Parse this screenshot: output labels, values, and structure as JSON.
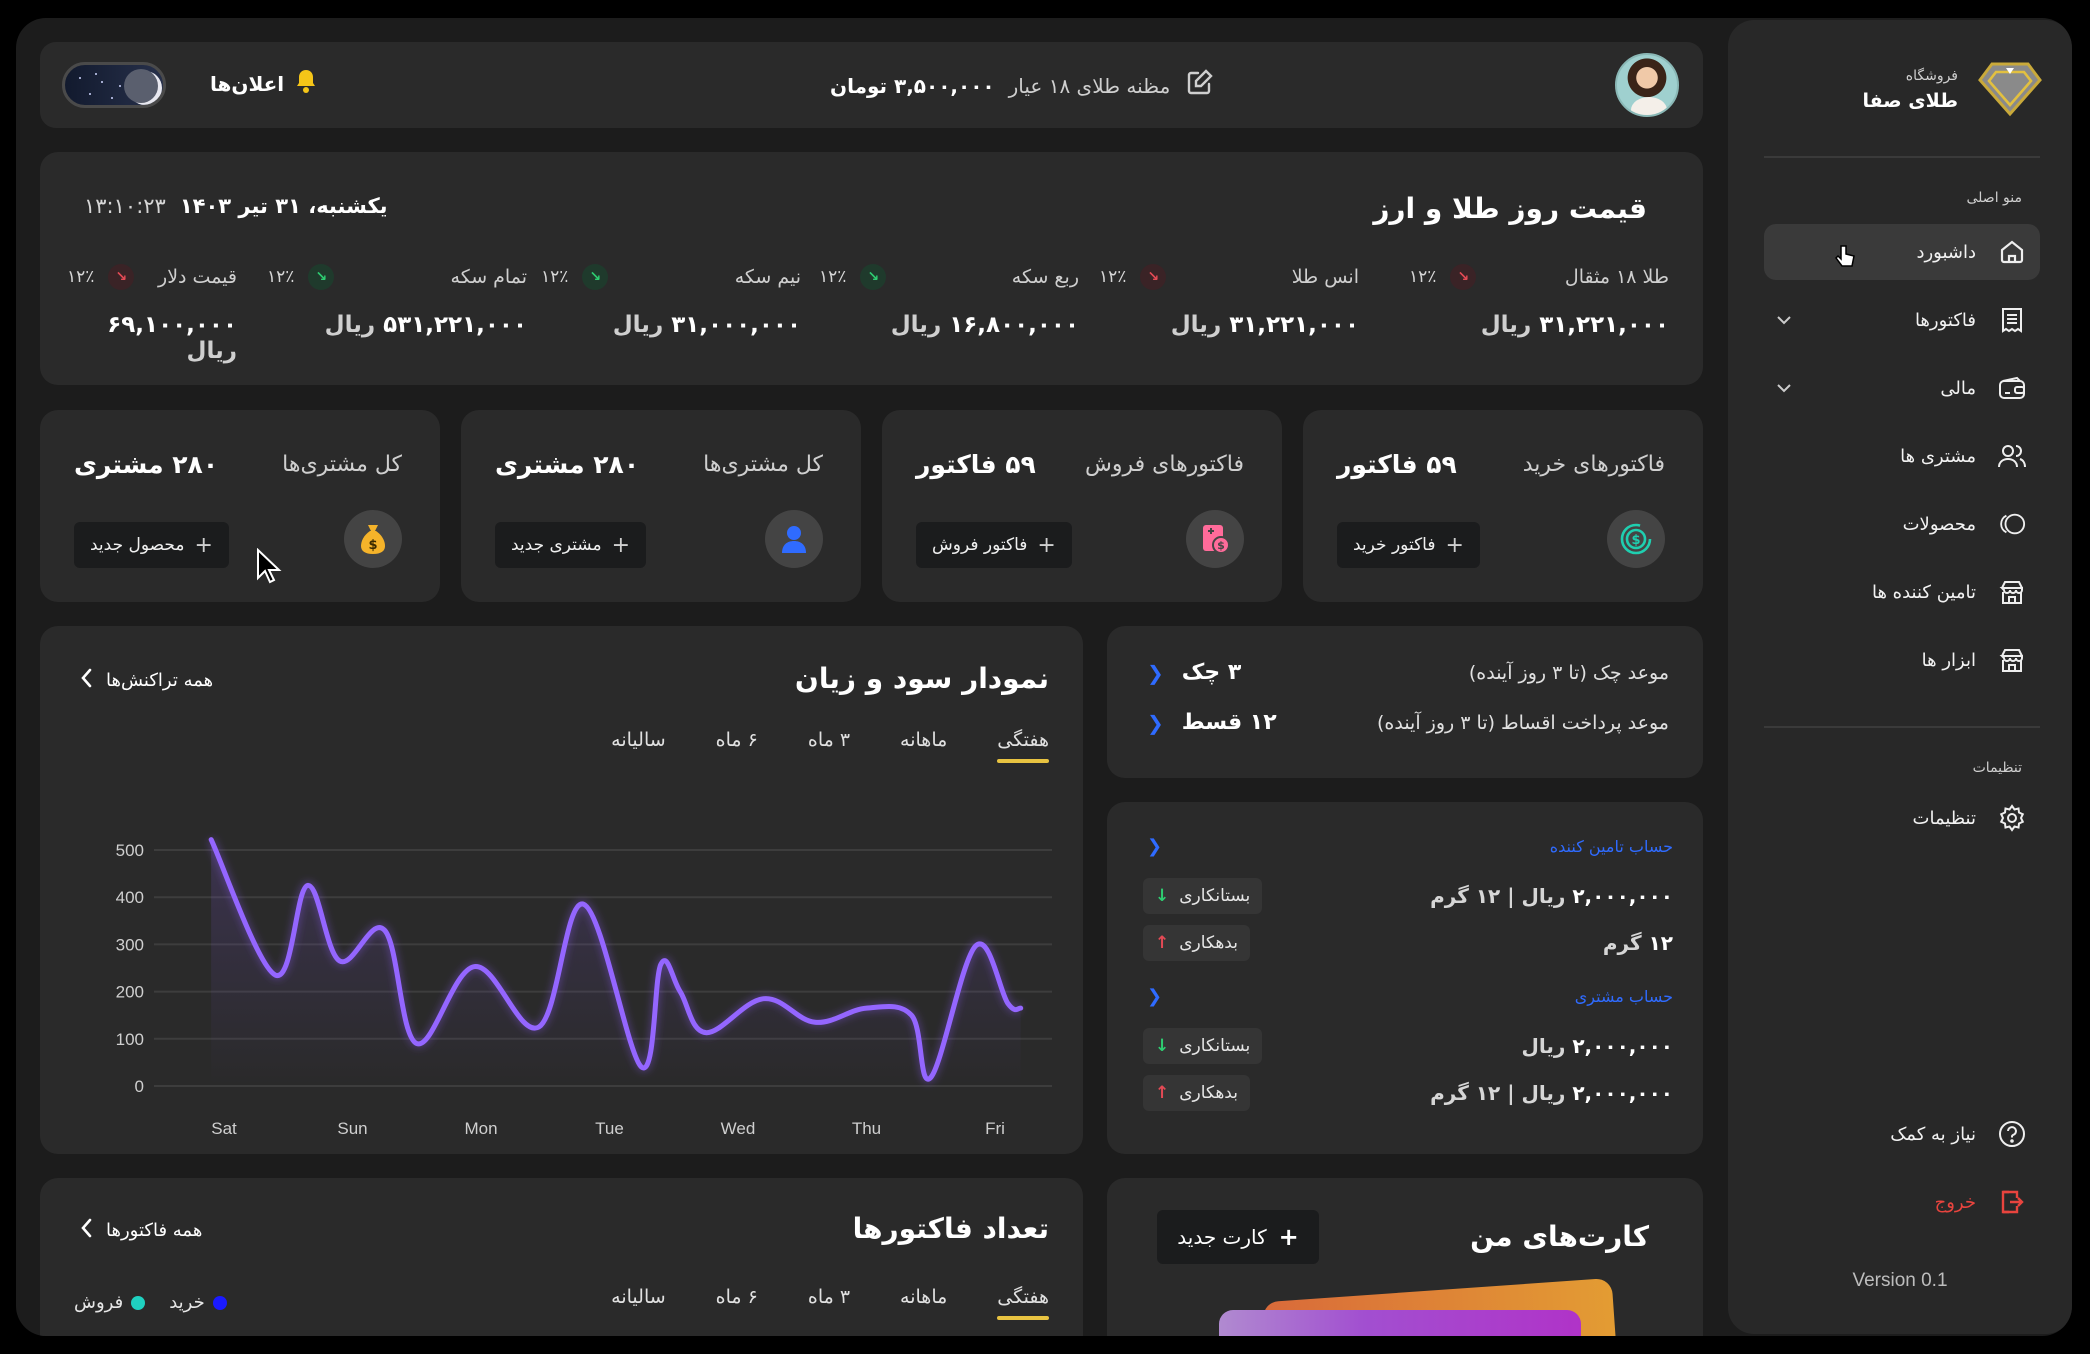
{
  "header": {
    "notifications_label": "اعلان‌ها",
    "gold_price_label": "مظنه طلای ۱۸ عیار",
    "gold_price_value": "۳,۵۰۰,۰۰۰ تومان",
    "theme_toggle": "dark"
  },
  "sidebar": {
    "brand_sub": "فروشگاه",
    "brand_name": "طلای صفا",
    "main_menu_label": "منو اصلی",
    "items": [
      {
        "label": "داشبورد",
        "icon": "home-icon",
        "active": true
      },
      {
        "label": "فاکتورها",
        "icon": "receipt-icon",
        "expandable": true
      },
      {
        "label": "مالی",
        "icon": "wallet-icon",
        "expandable": true
      },
      {
        "label": "مشتری ها",
        "icon": "users-icon"
      },
      {
        "label": "محصولات",
        "icon": "rings-icon"
      },
      {
        "label": "تامین کننده ها",
        "icon": "store-icon"
      },
      {
        "label": "ابزار ها",
        "icon": "store-icon"
      }
    ],
    "settings_section_label": "تنظیمات",
    "settings_item": "تنظیمات",
    "help_item": "نیاز به کمک",
    "logout_item": "خروج",
    "version": "Version 0.1"
  },
  "prices": {
    "title": "قیمت روز طلا و ارز",
    "date": "یکشنبه، ۳۱ تیر ۱۴۰۳",
    "time": "۱۳:۱۰:۲۳",
    "items": [
      {
        "name": "طلا ۱۸ مثقال",
        "pct": "۱۲٪",
        "direction": "down",
        "value": "۳۱,۲۲۱,۰۰۰",
        "unit": "ریال"
      },
      {
        "name": "انس طلا",
        "pct": "۱۲٪",
        "direction": "down",
        "value": "۳۱,۲۲۱,۰۰۰",
        "unit": "ریال"
      },
      {
        "name": "ربع سکه",
        "pct": "۱۲٪",
        "direction": "up",
        "value": "۱۶,۸۰۰,۰۰۰",
        "unit": "ریال"
      },
      {
        "name": "نیم سکه",
        "pct": "۱۲٪",
        "direction": "up",
        "value": "۳۱,۰۰۰,۰۰۰",
        "unit": "ریال"
      },
      {
        "name": "تمام سکه",
        "pct": "۱۲٪",
        "direction": "up",
        "value": "۵۳۱,۲۲۱,۰۰۰",
        "unit": "ریال"
      },
      {
        "name": "قیمت دلار",
        "pct": "۱۲٪",
        "direction": "down",
        "value": "۶۹,۱۰۰,۰۰۰",
        "unit": "ریال"
      }
    ]
  },
  "stats": [
    {
      "title": "فاکتورهای خرید",
      "value": "۵۹ فاکتور",
      "button": "فاکتور خرید",
      "icon": "dollar-coin-icon",
      "icon_color": "#1fcfb0"
    },
    {
      "title": "فاکتورهای فروش",
      "value": "۵۹ فاکتور",
      "button": "فاکتور فروش",
      "icon": "invoice-dollar-icon",
      "icon_color": "#ff6b9a"
    },
    {
      "title": "کل مشتری‌ها",
      "value": "۲۸۰ مشتری",
      "button": "مشتری جدید",
      "icon": "user-icon",
      "icon_color": "#2f6bff"
    },
    {
      "title": "کل مشتری‌ها",
      "value": "۲۸۰ مشتری",
      "button": "محصول جدید",
      "icon": "money-bag-icon",
      "icon_color": "#f5b32a"
    }
  ],
  "profit_chart": {
    "title": "نمودار سود و زیان",
    "see_all": "همه تراکنش‌ها",
    "tabs": [
      "هفتگی",
      "ماهانه",
      "۳ ماه",
      "۶ ماه",
      "سالیانه"
    ],
    "active_tab": 0
  },
  "chart_data": {
    "type": "line",
    "title": "نمودار سود و زیان",
    "xlabel": "",
    "ylabel": "",
    "categories": [
      "Sat",
      "Sun",
      "Mon",
      "Tue",
      "Wed",
      "Thu",
      "Fri"
    ],
    "yticks": [
      0,
      100,
      200,
      300,
      400,
      500
    ],
    "ylim": [
      0,
      500
    ],
    "grid": true,
    "series": [
      {
        "name": "profit",
        "color": "#8b5cf6",
        "x": [
          -0.1,
          0.4,
          0.65,
          0.9,
          1.25,
          1.5,
          1.95,
          2.45,
          2.8,
          3.25,
          3.4,
          3.55,
          3.75,
          4.2,
          4.6,
          5.0,
          5.35,
          5.5,
          5.85,
          6.1,
          6.2
        ],
        "values": [
          522,
          235,
          425,
          265,
          330,
          90,
          253,
          125,
          385,
          40,
          258,
          200,
          113,
          185,
          135,
          165,
          150,
          18,
          297,
          175,
          165
        ]
      }
    ]
  },
  "checks": {
    "rows": [
      {
        "label": "موعد چک (تا ۳ روز آینده)",
        "value": "۳ چک"
      },
      {
        "label": "موعد پرداخت اقساط (تا ۳ روز آینده)",
        "value": "۱۲ قسط"
      }
    ]
  },
  "accounts": {
    "supplier_label": "حساب تامین کننده",
    "customer_label": "حساب مشتری",
    "supplier_rows": [
      {
        "amount": "۲,۰۰۰,۰۰۰",
        "unit": "ریال | ۱۲ گرم",
        "badge": "بستانکاری",
        "type": "credit"
      },
      {
        "amount": "۱۲",
        "unit": "گرم",
        "badge": "بدهکاری",
        "type": "debit"
      }
    ],
    "customer_rows": [
      {
        "amount": "۲,۰۰۰,۰۰۰",
        "unit": "ریال",
        "badge": "بستانکاری",
        "type": "credit"
      },
      {
        "amount": "۲,۰۰۰,۰۰۰",
        "unit": "ریال | ۱۲ گرم",
        "badge": "بدهکاری",
        "type": "debit"
      }
    ]
  },
  "invoices_chart": {
    "title": "تعداد فاکتورها",
    "see_all": "همه فاکتورها",
    "tabs": [
      "هفتگی",
      "ماهانه",
      "۳ ماه",
      "۶ ماه",
      "سالیانه"
    ],
    "active_tab": 0,
    "legend": [
      {
        "label": "خرید",
        "color": "#1a1aff"
      },
      {
        "label": "فروش",
        "color": "#1fd1c0"
      }
    ]
  },
  "my_cards": {
    "title": "کارت‌های من",
    "new_card_button": "کارت جدید"
  }
}
